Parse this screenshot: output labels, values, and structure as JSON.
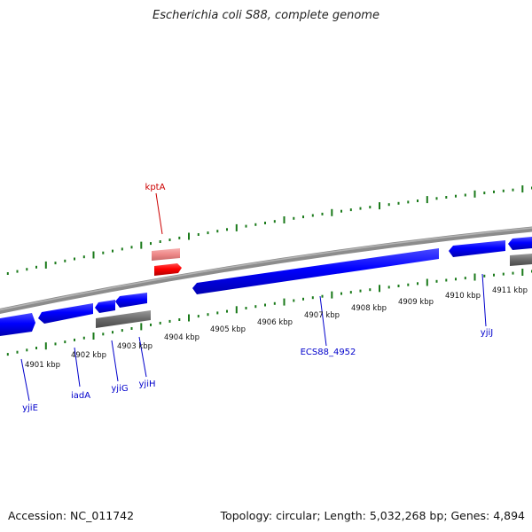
{
  "title": "Escherichia coli S88, complete genome",
  "colors": {
    "background": "#ffffff",
    "positive_gene": "#ff0000",
    "positive_gene_light": "#ee8888",
    "negative_gene": "#0000ff",
    "gray_feature": "#666666",
    "backbone": "#888888",
    "tick_positive": "#1a7a1a",
    "tick_negative": "#1a7a1a",
    "label_red": "#cc0000",
    "label_blue": "#0000cc"
  },
  "scale": {
    "unit": "kbp",
    "labels": [
      "4901 kbp",
      "4902 kbp",
      "4903 kbp",
      "4904 kbp",
      "4905 kbp",
      "4906 kbp",
      "4907 kbp",
      "4908 kbp",
      "4909 kbp",
      "4910 kbp",
      "4911 kbp"
    ]
  },
  "genes": [
    {
      "name": "kptA",
      "strand": "forward"
    },
    {
      "name": "yjiE",
      "strand": "reverse"
    },
    {
      "name": "iadA",
      "strand": "reverse"
    },
    {
      "name": "yjiG",
      "strand": "reverse"
    },
    {
      "name": "yjiH",
      "strand": "reverse"
    },
    {
      "name": "ECS88_4952",
      "strand": "reverse"
    },
    {
      "name": "yjiJ",
      "strand": "reverse"
    }
  ],
  "footer": {
    "accession_label": "Accession:",
    "accession": "NC_011742",
    "topology_label": "Topology:",
    "topology": "circular",
    "length_label": "Length:",
    "length": "5,032,268 bp",
    "genes_label": "Genes:",
    "genes_count": "4,894"
  }
}
